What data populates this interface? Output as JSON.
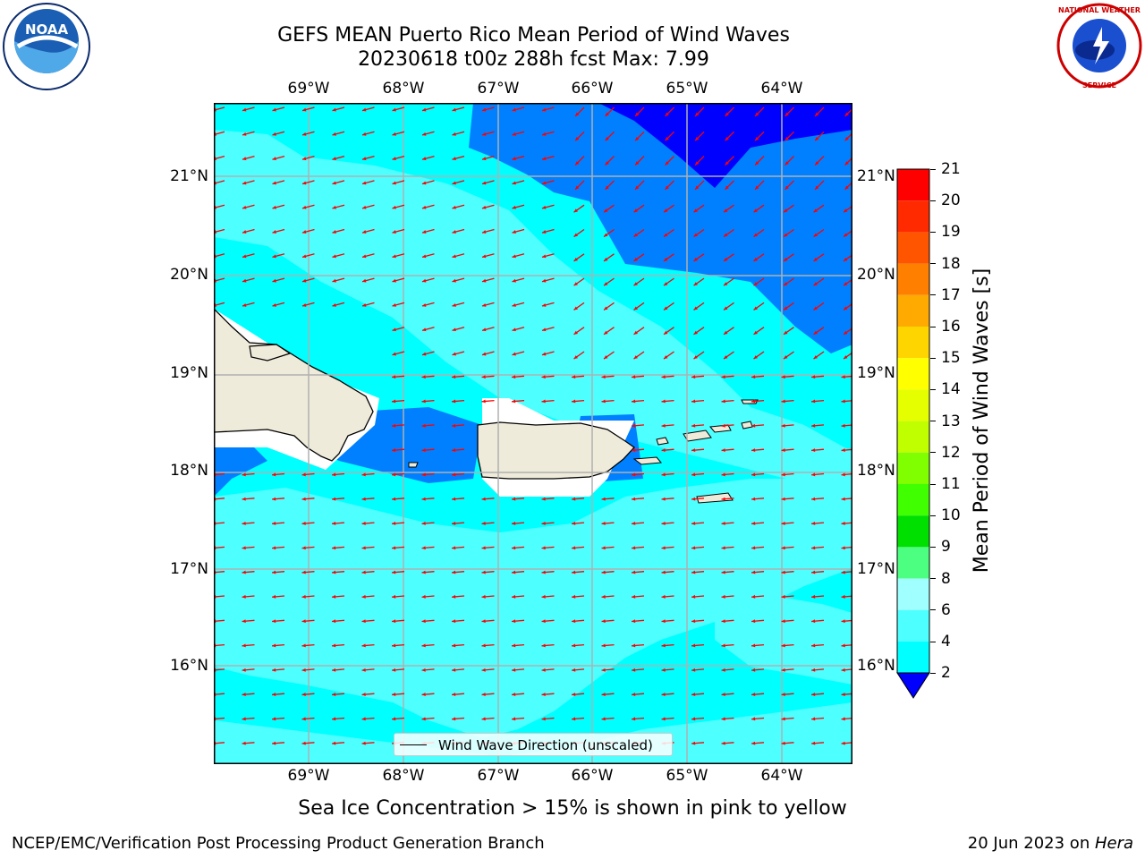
{
  "title": {
    "line1": "GEFS MEAN Puerto Rico Mean Period of Wind Waves",
    "line2": "20230618 t00z 288h fcst   Max: 7.99"
  },
  "map": {
    "lon_labels": [
      "69°W",
      "68°W",
      "67°W",
      "66°W",
      "65°W",
      "64°W"
    ],
    "lat_labels": [
      "21°N",
      "20°N",
      "19°N",
      "18°N",
      "17°N",
      "16°N"
    ],
    "land_color": "#efebdb",
    "arrow_color": "#ff0000",
    "legend_label": "Wind Wave Direction (unscaled)"
  },
  "colorbar": {
    "label": "Mean Period of Wind Waves [s]",
    "ticks": [
      "21",
      "20",
      "19",
      "18",
      "17",
      "16",
      "15",
      "14",
      "13",
      "12",
      "11",
      "10",
      "9",
      "8",
      "6",
      "4",
      "2"
    ],
    "colors_top_to_bottom": [
      "#ff0000",
      "#ff2a00",
      "#ff5500",
      "#ff8000",
      "#ffaa00",
      "#ffd500",
      "#ffff00",
      "#e6ff00",
      "#c0ff00",
      "#80ff00",
      "#40ff00",
      "#00e000",
      "#4dff80",
      "#a0ffff",
      "#4dffff",
      "#00ffff",
      "#00c0ff",
      "#0080ff",
      "#0000ff"
    ]
  },
  "sea_ice_note": "Sea Ice Concentration > 15% is shown in pink to yellow",
  "footer": {
    "left": "NCEP/EMC/Verification Post Processing Product Generation Branch",
    "date": "20 Jun 2023 on ",
    "machine": "Hera"
  },
  "logos": {
    "noaa": "NOAA",
    "nws": "NATIONAL WEATHER SERVICE"
  }
}
